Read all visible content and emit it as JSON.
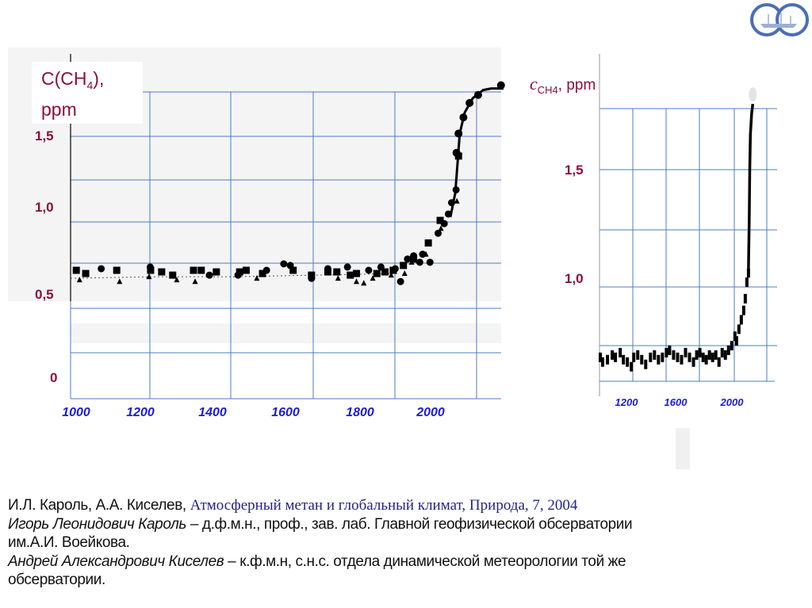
{
  "chart_data": [
    {
      "type": "scatter",
      "title": "C(CH4), ppm",
      "title_main": "C(CH",
      "title_sub": "4",
      "title_tail": "),",
      "title_unit": "ppm",
      "xlabel": "",
      "ylabel": "C(CH4), ppm",
      "xlim": [
        1000,
        2060
      ],
      "ylim": [
        0,
        1.85
      ],
      "grid": true,
      "x_ticks": [
        "1000",
        "1200",
        "1400",
        "1600",
        "1800",
        "2000"
      ],
      "y_ticks": [
        "1,5",
        "1,0",
        "0,5",
        "0"
      ],
      "series": [
        {
          "name": "squares",
          "marker": "square",
          "points": [
            [
              1014,
              0.67
            ],
            [
              1037,
              0.65
            ],
            [
              1113,
              0.67
            ],
            [
              1196,
              0.67
            ],
            [
              1223,
              0.66
            ],
            [
              1250,
              0.64
            ],
            [
              1301,
              0.67
            ],
            [
              1320,
              0.67
            ],
            [
              1357,
              0.66
            ],
            [
              1414,
              0.66
            ],
            [
              1430,
              0.67
            ],
            [
              1470,
              0.65
            ],
            [
              1545,
              0.67
            ],
            [
              1590,
              0.64
            ],
            [
              1630,
              0.66
            ],
            [
              1652,
              0.66
            ],
            [
              1685,
              0.64
            ],
            [
              1700,
              0.65
            ],
            [
              1750,
              0.65
            ],
            [
              1770,
              0.66
            ],
            [
              1790,
              0.67
            ],
            [
              1815,
              0.7
            ],
            [
              1840,
              0.74
            ],
            [
              1876,
              0.84
            ],
            [
              1905,
              0.98
            ],
            [
              1950,
              1.38
            ]
          ]
        },
        {
          "name": "circles",
          "marker": "circle",
          "points": [
            [
              1075,
              0.68
            ],
            [
              1195,
              0.69
            ],
            [
              1340,
              0.64
            ],
            [
              1410,
              0.64
            ],
            [
              1480,
              0.67
            ],
            [
              1522,
              0.71
            ],
            [
              1538,
              0.7
            ],
            [
              1590,
              0.62
            ],
            [
              1630,
              0.68
            ],
            [
              1678,
              0.69
            ],
            [
              1730,
              0.67
            ],
            [
              1760,
              0.69
            ],
            [
              1795,
              0.68
            ],
            [
              1808,
              0.6
            ],
            [
              1825,
              0.74
            ],
            [
              1840,
              0.76
            ],
            [
              1855,
              0.72
            ],
            [
              1862,
              0.77
            ],
            [
              1880,
              0.72
            ],
            [
              1900,
              0.9
            ],
            [
              1915,
              0.96
            ],
            [
              1925,
              1.02
            ],
            [
              1933,
              1.09
            ],
            [
              1944,
              1.17
            ],
            [
              1945,
              1.4
            ],
            [
              1950,
              1.52
            ],
            [
              1962,
              1.62
            ],
            [
              1977,
              1.71
            ],
            [
              1998,
              1.76
            ],
            [
              2054,
              1.82
            ]
          ]
        },
        {
          "name": "triangles",
          "marker": "triangle",
          "points": [
            [
              1022,
              0.61
            ],
            [
              1120,
              0.6
            ],
            [
              1192,
              0.63
            ],
            [
              1260,
              0.61
            ],
            [
              1305,
              0.6
            ],
            [
              1456,
              0.62
            ],
            [
              1655,
              0.62
            ],
            [
              1700,
              0.6
            ],
            [
              1718,
              0.59
            ],
            [
              1740,
              0.62
            ],
            [
              1785,
              0.64
            ],
            [
              1818,
              0.65
            ],
            [
              1835,
              0.72
            ],
            [
              1870,
              0.77
            ],
            [
              1907,
              0.93
            ],
            [
              1946,
              1.1
            ]
          ]
        }
      ],
      "fit_curve": [
        [
          1000,
          0.62
        ],
        [
          1200,
          0.63
        ],
        [
          1400,
          0.63
        ],
        [
          1600,
          0.64
        ],
        [
          1800,
          0.65
        ],
        [
          1850,
          0.7
        ],
        [
          1900,
          0.85
        ],
        [
          1930,
          1.0
        ],
        [
          1942,
          1.15
        ],
        [
          1948,
          1.35
        ],
        [
          1953,
          1.52
        ],
        [
          1965,
          1.65
        ],
        [
          1985,
          1.74
        ],
        [
          2010,
          1.79
        ],
        [
          2030,
          1.8
        ],
        [
          2060,
          1.8
        ]
      ]
    },
    {
      "type": "scatter",
      "title": "cCH4, ppm",
      "title_c": "c",
      "title_sub": "CH4",
      "title_unit": ", ppm",
      "xlim": [
        1000,
        2050
      ],
      "ylim": [
        0.5,
        1.8
      ],
      "grid": true,
      "x_ticks": [
        "1200",
        "1600",
        "2000"
      ],
      "y_ticks": [
        "1,5",
        "1,0"
      ],
      "series": [
        {
          "name": "records",
          "marker": "bar",
          "points": [
            [
              1005,
              0.7
            ],
            [
              1020,
              0.68
            ],
            [
              1050,
              0.69
            ],
            [
              1080,
              0.71
            ],
            [
              1100,
              0.7
            ],
            [
              1130,
              0.72
            ],
            [
              1150,
              0.69
            ],
            [
              1175,
              0.68
            ],
            [
              1200,
              0.66
            ],
            [
              1215,
              0.7
            ],
            [
              1240,
              0.71
            ],
            [
              1265,
              0.69
            ],
            [
              1290,
              0.67
            ],
            [
              1320,
              0.7
            ],
            [
              1345,
              0.71
            ],
            [
              1370,
              0.69
            ],
            [
              1395,
              0.7
            ],
            [
              1420,
              0.72
            ],
            [
              1440,
              0.73
            ],
            [
              1465,
              0.71
            ],
            [
              1490,
              0.7
            ],
            [
              1515,
              0.69
            ],
            [
              1540,
              0.72
            ],
            [
              1565,
              0.7
            ],
            [
              1590,
              0.68
            ],
            [
              1610,
              0.71
            ],
            [
              1630,
              0.72
            ],
            [
              1650,
              0.7
            ],
            [
              1670,
              0.69
            ],
            [
              1690,
              0.71
            ],
            [
              1710,
              0.7
            ],
            [
              1730,
              0.71
            ],
            [
              1750,
              0.68
            ],
            [
              1770,
              0.72
            ],
            [
              1790,
              0.71
            ],
            [
              1810,
              0.73
            ],
            [
              1830,
              0.75
            ],
            [
              1850,
              0.79
            ],
            [
              1860,
              0.77
            ],
            [
              1875,
              0.82
            ],
            [
              1890,
              0.86
            ],
            [
              1905,
              0.9
            ],
            [
              1915,
              0.95
            ],
            [
              1925,
              1.02
            ],
            [
              1935,
              1.06
            ]
          ]
        }
      ],
      "fit_curve": [
        [
          1935,
          1.08
        ],
        [
          1940,
          1.3
        ],
        [
          1943,
          1.5
        ],
        [
          1947,
          1.65
        ],
        [
          1955,
          1.74
        ],
        [
          1962,
          1.78
        ]
      ],
      "end_marker": [
        1962,
        1.82
      ]
    }
  ],
  "caption": {
    "line1_authors": "И.Л. Кароль, А.А. Киселев, ",
    "line1_ref": "Атмосферный метан и глобальный климат, Природа, 7, 2004",
    "line2_name": "Игорь Леонидович Кароль",
    "line2_text": " – д.ф.м.н., проф., зав. лаб. Главной геофизической обсерватории",
    "line3_text": "им.А.И. Воейкова.",
    "line4_name": "Андрей Александрович Киселев",
    "line4_text": " – к.ф.м.н, с.н.с.  отдела динамической метеорологии той же",
    "line5_text": "обсерватории."
  },
  "colors": {
    "grid": "#4a7cc7",
    "label": "#8b0f3a",
    "tick": "#1c1cd8",
    "marker": "#000000",
    "band": "#f4f4f4"
  }
}
